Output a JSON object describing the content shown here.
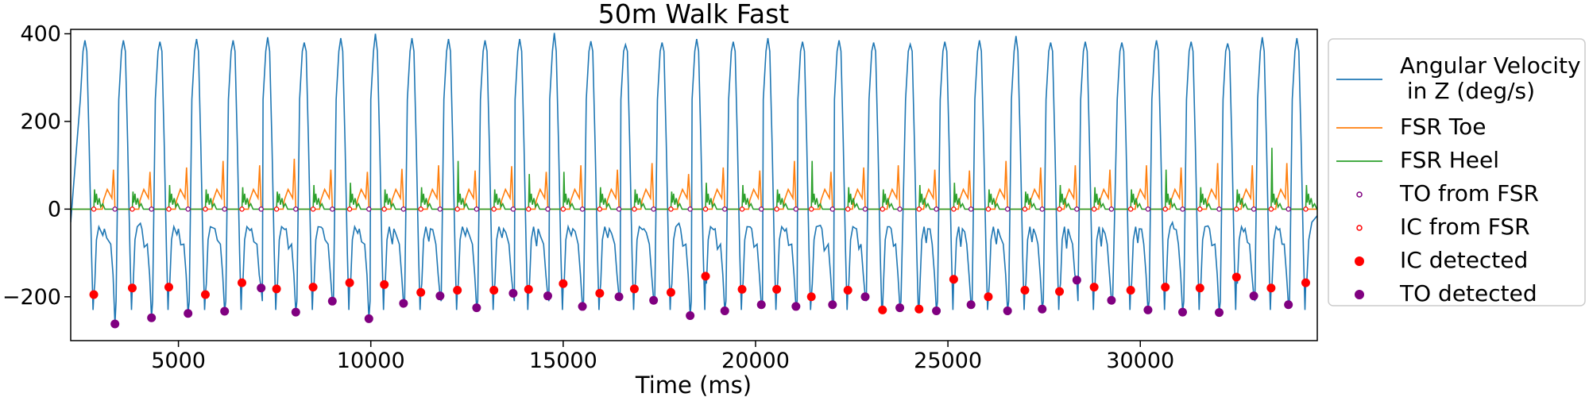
{
  "chart_data": {
    "type": "line",
    "title": "50m Walk Fast",
    "xlabel": "Time (ms)",
    "ylabel": "",
    "xlim": [
      2200,
      34600
    ],
    "ylim": [
      -300,
      410
    ],
    "x_ticks": [
      5000,
      10000,
      15000,
      20000,
      25000,
      30000
    ],
    "y_ticks": [
      -200,
      0,
      200,
      400
    ],
    "grid": false,
    "legend_position": "outside-right",
    "colors": {
      "angular_velocity": "#1f77b4",
      "fsr_toe": "#ff7f0e",
      "fsr_heel": "#2ca02c",
      "to_from_fsr": "#800080",
      "ic_from_fsr": "#ff0000",
      "ic_detected": "#ff0000",
      "to_detected": "#800080"
    },
    "legend": [
      {
        "key": "angular_velocity",
        "label": "Angular Velocity\n in Z (deg/s)",
        "style": "line"
      },
      {
        "key": "fsr_toe",
        "label": "FSR Toe",
        "style": "line"
      },
      {
        "key": "fsr_heel",
        "label": "FSR Heel",
        "style": "line"
      },
      {
        "key": "to_from_fsr",
        "label": "TO from FSR",
        "style": "hollow"
      },
      {
        "key": "ic_from_fsr",
        "label": "IC from FSR",
        "style": "hollow"
      },
      {
        "key": "ic_detected",
        "label": "IC detected",
        "style": "filled"
      },
      {
        "key": "to_detected",
        "label": "TO detected",
        "style": "filled"
      }
    ],
    "series": {
      "ic_detected": {
        "x": [
          2800,
          3800,
          4750,
          5700,
          6650,
          7550,
          8500,
          9450,
          10350,
          11300,
          12250,
          13200,
          14100,
          15000,
          15950,
          16850,
          17800,
          18700,
          19650,
          20550,
          21450,
          22400,
          23300,
          24250,
          25150,
          26050,
          27000,
          27900,
          28800,
          29750,
          30650,
          31550,
          32500,
          33400,
          34300
        ],
        "y": [
          -195,
          -180,
          -178,
          -195,
          -168,
          -182,
          -178,
          -168,
          -172,
          -190,
          -185,
          -185,
          -183,
          -170,
          -192,
          -182,
          -190,
          -153,
          -183,
          -183,
          -200,
          -185,
          -230,
          -228,
          -160,
          -200,
          -185,
          -188,
          -178,
          -185,
          -178,
          -180,
          -155,
          -180,
          -168
        ]
      },
      "to_detected": {
        "x": [
          3350,
          4300,
          5250,
          6200,
          7150,
          8050,
          9000,
          9950,
          10850,
          11800,
          12750,
          13700,
          14600,
          15500,
          16450,
          17350,
          18300,
          19200,
          20150,
          21050,
          22000,
          22850,
          23750,
          24700,
          25600,
          26550,
          27450,
          28350,
          29250,
          30200,
          31100,
          32050,
          32950,
          33850
        ],
        "y": [
          -262,
          -248,
          -238,
          -233,
          -180,
          -235,
          -210,
          -250,
          -215,
          -198,
          -225,
          -192,
          -198,
          -222,
          -200,
          -208,
          -243,
          -232,
          -218,
          -222,
          -218,
          -200,
          -225,
          -232,
          -218,
          -232,
          -228,
          -162,
          -208,
          -230,
          -235,
          -236,
          -198,
          -218
        ]
      },
      "to_from_fsr_x": [
        3350,
        4300,
        5250,
        6200,
        7150,
        8050,
        9000,
        9950,
        10850,
        11800,
        12750,
        13700,
        14600,
        15500,
        16450,
        17350,
        18300,
        19200,
        20150,
        21050,
        22000,
        22850,
        23750,
        24700,
        25600,
        26550,
        27450,
        28350,
        29250,
        30200,
        31100,
        32050,
        32950,
        33850
      ],
      "ic_from_fsr_x": [
        2800,
        3800,
        4750,
        5700,
        6650,
        7550,
        8500,
        9450,
        10350,
        11300,
        12250,
        13200,
        14100,
        15000,
        15950,
        16850,
        17800,
        18700,
        19650,
        20550,
        21450,
        22400,
        23300,
        24250,
        25150,
        26050,
        27000,
        27900,
        28800,
        29750,
        30650,
        31550,
        32500,
        33400,
        34300
      ],
      "fsr_marker_y": 0,
      "angular_velocity_peaks": [
        385,
        385,
        382,
        388,
        385,
        392,
        380,
        390,
        400,
        390,
        388,
        385,
        388,
        402,
        383,
        375,
        380,
        388,
        382,
        390,
        382,
        385,
        380,
        376,
        382,
        385,
        395,
        380,
        382,
        380,
        385,
        382,
        378,
        392,
        390
      ],
      "fsr_toe_peaks": [
        90,
        85,
        95,
        110,
        100,
        115,
        90,
        85,
        92,
        100,
        88,
        98,
        85,
        100,
        90,
        105,
        80,
        95,
        88,
        110,
        85,
        95,
        100,
        90,
        88,
        110,
        95,
        100,
        90,
        100,
        95,
        105,
        100,
        105,
        110
      ],
      "fsr_heel_peaks": [
        45,
        40,
        55,
        45,
        50,
        40,
        55,
        60,
        45,
        50,
        110,
        45,
        80,
        85,
        50,
        45,
        40,
        60,
        55,
        45,
        110,
        50,
        45,
        55,
        60,
        45,
        40,
        55,
        50,
        45,
        90,
        50,
        45,
        140,
        55
      ]
    }
  }
}
